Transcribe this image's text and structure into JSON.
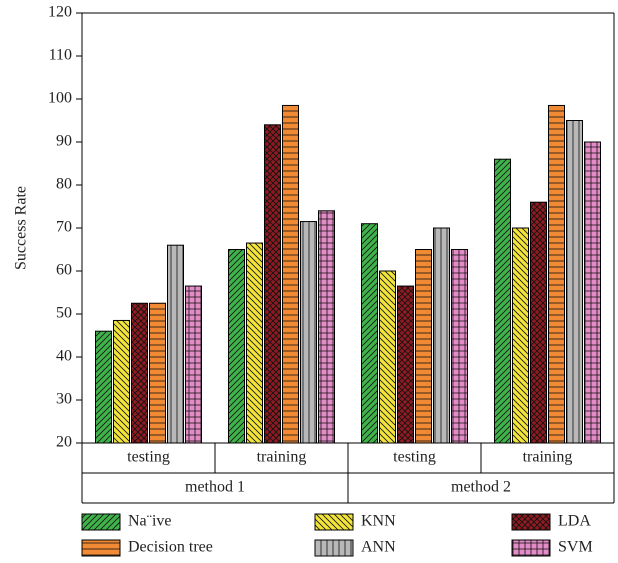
{
  "chart_data": {
    "type": "bar",
    "y_label": "Success Rate",
    "categories": [
      "testing",
      "training",
      "testing",
      "training"
    ],
    "groups": [
      "method 1",
      "method 2"
    ],
    "ylim": [
      20,
      120
    ],
    "yticks": [
      20,
      30,
      40,
      50,
      60,
      70,
      80,
      90,
      100,
      110,
      120
    ],
    "series": [
      {
        "name": "Na¨ive",
        "color": "#3fb24a",
        "hatch": "diagonal",
        "values": [
          46,
          65,
          71,
          86
        ]
      },
      {
        "name": "KNN",
        "color": "#f2e43a",
        "hatch": "backdiagonal",
        "values": [
          48.5,
          66.5,
          60,
          70
        ]
      },
      {
        "name": "LDA",
        "color": "#8e1b22",
        "hatch": "crosshatch",
        "values": [
          52.5,
          94,
          56.5,
          76
        ]
      },
      {
        "name": "Decision tree",
        "color": "#f08a35",
        "hatch": "horizontal",
        "values": [
          52.5,
          98.5,
          65,
          98.5
        ]
      },
      {
        "name": "ANN",
        "color": "#b8b8b8",
        "hatch": "vertical",
        "values": [
          66,
          71.5,
          70,
          95
        ]
      },
      {
        "name": "SVM",
        "color": "#e48cc8",
        "hatch": "grid",
        "values": [
          56.5,
          74,
          65,
          90
        ]
      }
    ]
  }
}
